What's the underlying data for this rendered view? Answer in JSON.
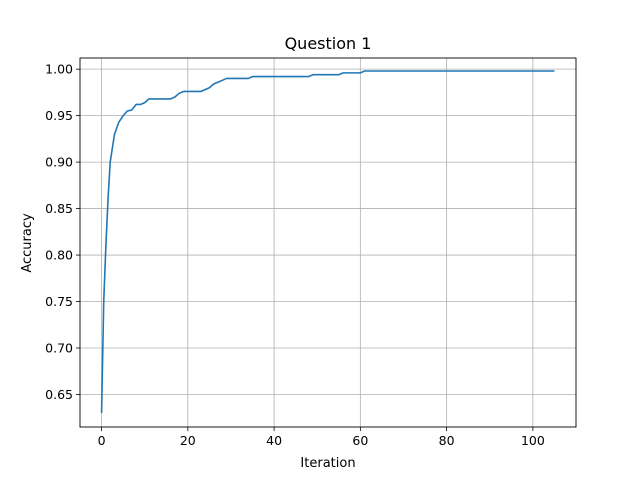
{
  "chart_data": {
    "type": "line",
    "title": "Question 1",
    "xlabel": "Iteration",
    "ylabel": "Accuracy",
    "xlim": [
      -5,
      110
    ],
    "ylim": [
      0.615,
      1.012
    ],
    "xticks": [
      0,
      20,
      40,
      60,
      80,
      100
    ],
    "yticks": [
      0.65,
      0.7,
      0.75,
      0.8,
      0.85,
      0.9,
      0.95,
      1.0
    ],
    "xtick_labels": [
      "0",
      "20",
      "40",
      "60",
      "80",
      "100"
    ],
    "ytick_labels": [
      "0.65",
      "0.70",
      "0.75",
      "0.80",
      "0.85",
      "0.90",
      "0.95",
      "1.00"
    ],
    "grid": true,
    "line_color": "#1f77b4",
    "series": [
      {
        "x": [
          0,
          0.5,
          1,
          1.5,
          2,
          2.5,
          3,
          4,
          5,
          6,
          7,
          8,
          9,
          10,
          11,
          12,
          13,
          14,
          15,
          16,
          17,
          18,
          19,
          20,
          21,
          22,
          23,
          24,
          25,
          26,
          27,
          28,
          29,
          30,
          31,
          32,
          33,
          34,
          35,
          36,
          40,
          45,
          48,
          49,
          50,
          55,
          56,
          57,
          58,
          59,
          60,
          61,
          62,
          70,
          80,
          90,
          100,
          105
        ],
        "y": [
          0.63,
          0.75,
          0.81,
          0.86,
          0.9,
          0.915,
          0.93,
          0.943,
          0.95,
          0.955,
          0.956,
          0.962,
          0.962,
          0.964,
          0.968,
          0.968,
          0.968,
          0.968,
          0.968,
          0.968,
          0.97,
          0.974,
          0.976,
          0.976,
          0.976,
          0.976,
          0.976,
          0.978,
          0.98,
          0.984,
          0.986,
          0.988,
          0.99,
          0.99,
          0.99,
          0.99,
          0.99,
          0.99,
          0.992,
          0.992,
          0.992,
          0.992,
          0.992,
          0.994,
          0.994,
          0.994,
          0.996,
          0.996,
          0.996,
          0.996,
          0.996,
          0.998,
          0.998,
          0.998,
          0.998,
          0.998,
          0.998,
          0.998
        ]
      }
    ]
  }
}
